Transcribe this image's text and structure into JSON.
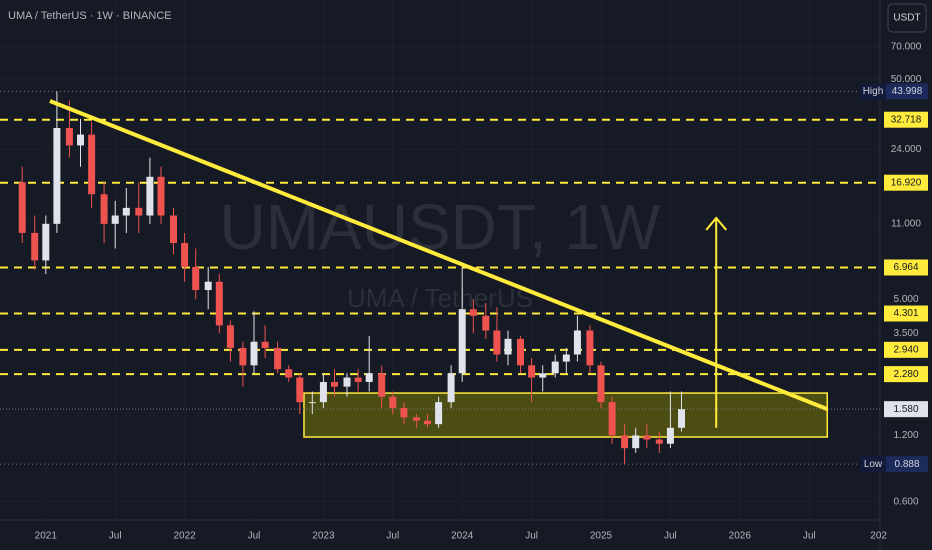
{
  "header": {
    "title": "UMA / TetherUS · 1W · BINANCE",
    "currency": "USDT"
  },
  "chart_data": {
    "type": "candlestick",
    "watermark": "UMAUSDT, 1W",
    "watermark_sub": "UMA / TetherUS",
    "log_scale": true,
    "up_color": "#e0e3eb",
    "down_color": "#ef5350",
    "x": [
      2020.83,
      2020.92,
      2021.0,
      2021.08,
      2021.17,
      2021.25,
      2021.33,
      2021.42,
      2021.5,
      2021.58,
      2021.67,
      2021.75,
      2021.83,
      2021.92,
      2022.0,
      2022.08,
      2022.17,
      2022.25,
      2022.33,
      2022.42,
      2022.5,
      2022.58,
      2022.67,
      2022.75,
      2022.83,
      2022.92,
      2023.0,
      2023.08,
      2023.17,
      2023.25,
      2023.33,
      2023.42,
      2023.5,
      2023.58,
      2023.67,
      2023.75,
      2023.83,
      2023.92,
      2024.0,
      2024.08,
      2024.17,
      2024.25,
      2024.33,
      2024.42,
      2024.5,
      2024.58,
      2024.67,
      2024.75,
      2024.83,
      2024.92,
      2025.0,
      2025.08,
      2025.17,
      2025.25,
      2025.33,
      2025.42,
      2025.5,
      2025.58
    ],
    "open": [
      17,
      10,
      7.5,
      11,
      30,
      25,
      28,
      15,
      11,
      12,
      13,
      12,
      18,
      12,
      9,
      7,
      5.5,
      6,
      3.8,
      3,
      2.5,
      3.2,
      3,
      2.4,
      2.2,
      1.7,
      1.7,
      2.1,
      2.0,
      2.2,
      2.1,
      2.3,
      1.8,
      1.6,
      1.45,
      1.4,
      1.35,
      1.7,
      2.3,
      4.5,
      4.2,
      3.6,
      2.8,
      3.3,
      2.5,
      2.2,
      2.3,
      2.6,
      2.8,
      3.6,
      2.5,
      1.7,
      1.2,
      1.05,
      1.2,
      1.15,
      1.1,
      1.3
    ],
    "high": [
      20,
      12,
      12,
      44,
      40,
      33,
      32,
      17,
      14,
      16,
      17,
      22,
      20,
      13,
      10,
      8.5,
      7,
      6.5,
      4,
      3.2,
      4.4,
      3.8,
      3.2,
      2.5,
      2.3,
      1.9,
      2.3,
      2.4,
      2.3,
      2.4,
      3.4,
      2.5,
      1.9,
      1.7,
      1.5,
      1.5,
      1.8,
      2.5,
      7.0,
      5.0,
      4.8,
      4.6,
      3.6,
      3.4,
      2.7,
      2.5,
      2.8,
      3.0,
      4.2,
      3.8,
      2.6,
      1.8,
      1.35,
      1.3,
      1.35,
      1.25,
      1.9,
      1.9
    ],
    "low": [
      9,
      6.8,
      6.5,
      10,
      22,
      20,
      13,
      9,
      8.5,
      10,
      10,
      11,
      11,
      8,
      6,
      5,
      4.5,
      3.5,
      2.6,
      2.0,
      2.3,
      2.7,
      2.3,
      2.1,
      1.5,
      1.5,
      1.6,
      1.8,
      1.8,
      1.9,
      1.9,
      1.6,
      1.5,
      1.35,
      1.3,
      1.3,
      1.3,
      1.6,
      2.1,
      3.5,
      3.3,
      2.6,
      2.5,
      2.3,
      1.7,
      1.9,
      2.2,
      2.3,
      2.6,
      2.3,
      1.6,
      1.1,
      0.888,
      1.0,
      1.05,
      1.0,
      1.05,
      1.25
    ],
    "close": [
      10,
      7.5,
      11,
      30,
      25,
      28,
      15,
      11,
      12,
      13,
      12,
      18,
      12,
      9,
      7,
      5.5,
      6,
      3.8,
      3,
      2.5,
      3.2,
      3,
      2.4,
      2.2,
      1.7,
      1.7,
      2.1,
      2.0,
      2.2,
      2.1,
      2.3,
      1.8,
      1.6,
      1.45,
      1.4,
      1.35,
      1.7,
      2.3,
      4.5,
      4.2,
      3.6,
      2.8,
      3.3,
      2.5,
      2.2,
      2.3,
      2.6,
      2.8,
      3.6,
      2.5,
      1.7,
      1.2,
      1.05,
      1.2,
      1.15,
      1.1,
      1.3,
      1.58
    ],
    "xlim": [
      2020.67,
      2027.01
    ],
    "xticks": [
      2021,
      {
        "value": 2021.5,
        "label": "Jul"
      },
      2022,
      {
        "value": 2022.5,
        "label": "Jul"
      },
      2023,
      {
        "value": 2023.5,
        "label": "Jul"
      },
      2024,
      {
        "value": 2024.5,
        "label": "Jul"
      },
      2025,
      {
        "value": 2025.5,
        "label": "Jul"
      },
      2026,
      {
        "value": 2026.5,
        "label": "Jul"
      },
      {
        "value": 2027,
        "label": "202"
      }
    ],
    "ylim": [
      0.495,
      114.6
    ],
    "yticks": [
      {
        "value": 70,
        "label": "70.000"
      },
      {
        "value": 50,
        "label": "50.000"
      },
      {
        "value": 24,
        "label": "24.000"
      },
      {
        "value": 11,
        "label": "11.000"
      },
      {
        "value": 5,
        "label": "5.000"
      },
      {
        "value": 3.5,
        "label": "3.500"
      },
      {
        "value": 1.2,
        "label": "1.200"
      },
      {
        "value": 0.6,
        "label": "0.600"
      }
    ],
    "level_color": "#ffeb3b",
    "levels": [
      32.718,
      {
        "value": 16.92,
        "label": "16.920"
      },
      6.964,
      4.301,
      {
        "value": 2.94,
        "label": "2.940"
      },
      {
        "value": 2.28,
        "label": "2.280"
      }
    ],
    "extremes": [
      {
        "name": "High",
        "value": 43.998
      },
      {
        "name": "Low",
        "value": 0.888
      }
    ],
    "last_price": {
      "value": 1.58,
      "label": "1.580"
    },
    "trendline": {
      "x": [
        2021.03,
        2026.63
      ],
      "y": [
        39.8,
        1.58
      ]
    },
    "zone": {
      "x": [
        2022.86,
        2026.63
      ],
      "y": [
        1.18,
        1.87
      ]
    },
    "arrow": {
      "x": 2025.83,
      "y": [
        1.3,
        11.7
      ]
    }
  }
}
